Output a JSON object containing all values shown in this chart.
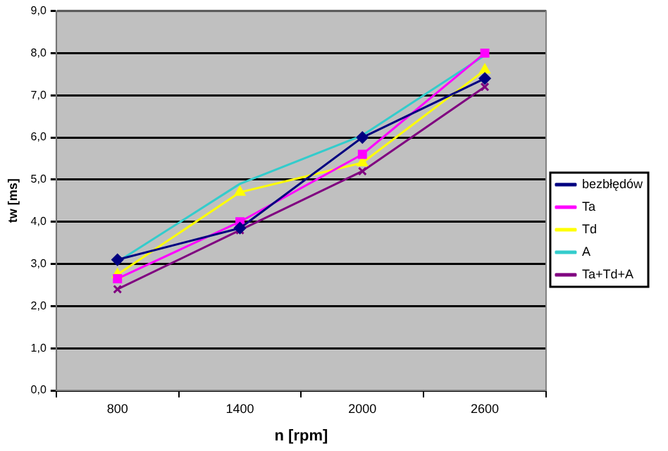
{
  "chart_data": {
    "type": "line",
    "xlabel": "n [rpm]",
    "ylabel": "tw [ms]",
    "categories": [
      "800",
      "1400",
      "2000",
      "2600"
    ],
    "series": [
      {
        "name": "bezbłędów",
        "color": "#000080",
        "marker": "diamond",
        "values": [
          3.1,
          3.85,
          6.0,
          7.4
        ]
      },
      {
        "name": "Ta",
        "color": "#ff00ff",
        "marker": "square",
        "values": [
          2.65,
          4.0,
          5.6,
          8.0
        ]
      },
      {
        "name": "Td",
        "color": "#ffff00",
        "marker": "triangle",
        "values": [
          2.75,
          4.7,
          5.4,
          7.6
        ]
      },
      {
        "name": "A",
        "color": "#33cccc",
        "marker": "none",
        "values": [
          3.05,
          4.9,
          6.05,
          7.95
        ]
      },
      {
        "name": "Ta+Td+A",
        "color": "#800080",
        "marker": "cross",
        "values": [
          2.4,
          3.8,
          5.2,
          7.2
        ]
      }
    ],
    "ylim": [
      0,
      9
    ],
    "yticks": [
      {
        "value": 0,
        "label": "0,0"
      },
      {
        "value": 1,
        "label": "1,0"
      },
      {
        "value": 2,
        "label": "2,0"
      },
      {
        "value": 3,
        "label": "3,0"
      },
      {
        "value": 4,
        "label": "4,0"
      },
      {
        "value": 5,
        "label": "5,0"
      },
      {
        "value": 6,
        "label": "6,0"
      },
      {
        "value": 7,
        "label": "7,0"
      },
      {
        "value": 8,
        "label": "8,0"
      },
      {
        "value": 9,
        "label": "9,0"
      }
    ],
    "grid": "y",
    "legend": "right",
    "line_style": "solid"
  }
}
